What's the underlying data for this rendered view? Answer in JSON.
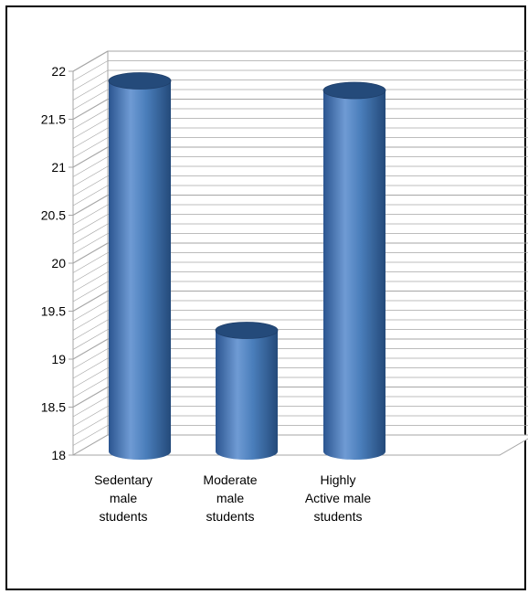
{
  "chart_data": {
    "type": "bar",
    "style": "3d-cylinder",
    "categories": [
      [
        "Sedentary",
        "male",
        "students"
      ],
      [
        "Moderate",
        "male",
        "students"
      ],
      [
        "Highly",
        "Active male",
        "students"
      ]
    ],
    "values": [
      21.9,
      19.3,
      21.8
    ],
    "ylim": [
      18,
      22
    ],
    "yticks": [
      18,
      18.5,
      19,
      19.5,
      20,
      20.5,
      21,
      21.5,
      22
    ],
    "ytick_labels": [
      "18",
      "18.5",
      "19",
      "19.5",
      "20",
      "20.5",
      "21",
      "21.5",
      "22"
    ],
    "grid": true,
    "legend": "none",
    "colors": {
      "bar": "#4a7ebb",
      "bar_dark": "#244a7a",
      "bar_light": "#6f9bd4",
      "grid": "#a6a6a6"
    }
  }
}
